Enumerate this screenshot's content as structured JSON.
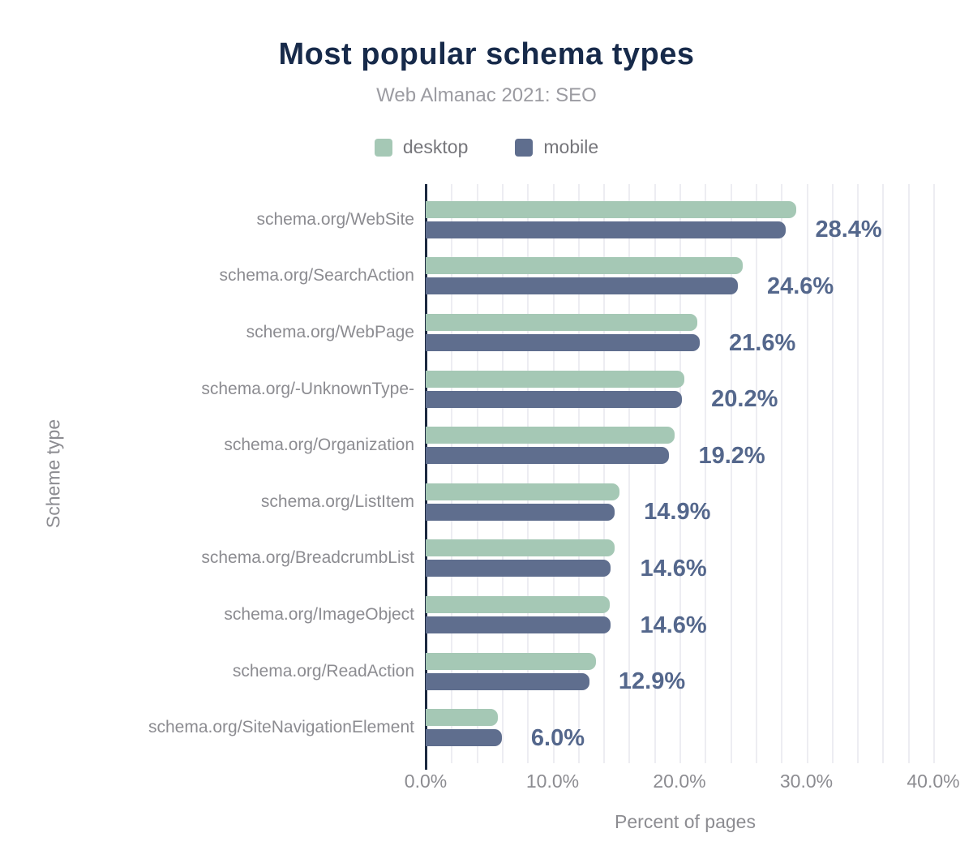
{
  "chart_data": {
    "type": "bar",
    "orientation": "horizontal",
    "title": "Most popular schema types",
    "subtitle": "Web Almanac 2021: SEO",
    "xlabel": "Percent of pages",
    "ylabel": "Scheme type",
    "xlim": [
      0,
      41
    ],
    "grid_step_percent": 2,
    "grid": true,
    "legend_position": "top-center",
    "x_ticks": [
      {
        "value": 0,
        "label": "0.0%"
      },
      {
        "value": 10,
        "label": "10.0%"
      },
      {
        "value": 20,
        "label": "20.0%"
      },
      {
        "value": 30,
        "label": "30.0%"
      },
      {
        "value": 40,
        "label": "40.0%"
      }
    ],
    "categories": [
      "schema.org/WebSite",
      "schema.org/SearchAction",
      "schema.org/WebPage",
      "schema.org/-UnknownType-",
      "schema.org/Organization",
      "schema.org/ListItem",
      "schema.org/BreadcrumbList",
      "schema.org/ImageObject",
      "schema.org/ReadAction",
      "schema.org/SiteNavigationElement"
    ],
    "series": [
      {
        "name": "desktop",
        "color": "#a5c8b5",
        "values": [
          29.2,
          25.0,
          21.4,
          20.4,
          19.6,
          15.3,
          14.9,
          14.5,
          13.4,
          5.7
        ]
      },
      {
        "name": "mobile",
        "color": "#5f6e8e",
        "values": [
          28.4,
          24.6,
          21.6,
          20.2,
          19.2,
          14.9,
          14.6,
          14.6,
          12.9,
          6.0
        ]
      }
    ],
    "value_labels": [
      "28.4%",
      "24.6%",
      "21.6%",
      "20.2%",
      "19.2%",
      "14.9%",
      "14.6%",
      "14.6%",
      "12.9%",
      "6.0%"
    ],
    "value_labels_series": "mobile",
    "colors": {
      "title": "#172a4a",
      "subtitle": "#9b9ba1",
      "legend_text": "#76767b",
      "category_label": "#8c8c91",
      "value_label": "#54678c",
      "tick_label": "#8c8c91",
      "gridline": "#ededf2",
      "axis_line": "#1c2940",
      "background": "#ffffff"
    }
  }
}
